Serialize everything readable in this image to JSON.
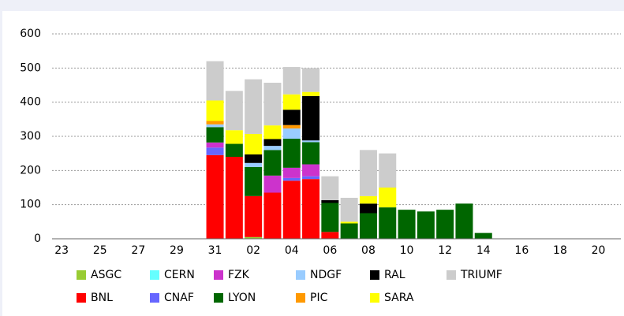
{
  "chart_data": {
    "type": "stacked-bar",
    "categories": [
      "23",
      null,
      "25",
      null,
      "27",
      null,
      "29",
      null,
      "31",
      null,
      "02",
      null,
      "04",
      null,
      "06",
      null,
      "08",
      null,
      "10",
      null,
      "12",
      null,
      "14",
      null,
      "16",
      null,
      "18",
      null,
      "20"
    ],
    "ylim": [
      0,
      600
    ],
    "yticks": [
      0,
      100,
      200,
      300,
      400,
      500,
      600
    ],
    "grid": true,
    "series": [
      {
        "name": "ASGC",
        "color": "#99cc33",
        "values": [
          0,
          0,
          0,
          0,
          0,
          0,
          0,
          0,
          0,
          0,
          5,
          0,
          0,
          0,
          0,
          0,
          0,
          0,
          0,
          0,
          0,
          0,
          0,
          0,
          0,
          0,
          0,
          0,
          0
        ]
      },
      {
        "name": "BNL",
        "color": "#ff0000",
        "values": [
          0,
          0,
          0,
          0,
          0,
          0,
          0,
          0,
          245,
          240,
          120,
          135,
          170,
          175,
          20,
          0,
          0,
          0,
          0,
          0,
          0,
          0,
          0,
          0,
          0,
          0,
          0,
          0,
          0
        ]
      },
      {
        "name": "CERN",
        "color": "#66ffff",
        "values": [
          0,
          0,
          0,
          0,
          0,
          0,
          0,
          0,
          0,
          0,
          0,
          0,
          0,
          0,
          0,
          0,
          0,
          0,
          0,
          0,
          0,
          0,
          0,
          0,
          0,
          0,
          0,
          0,
          0
        ]
      },
      {
        "name": "CNAF",
        "color": "#6666ff",
        "values": [
          0,
          0,
          0,
          0,
          0,
          0,
          0,
          0,
          22,
          0,
          0,
          0,
          8,
          8,
          0,
          0,
          0,
          0,
          0,
          0,
          0,
          0,
          0,
          0,
          0,
          0,
          0,
          0,
          0
        ]
      },
      {
        "name": "FZK",
        "color": "#cc33cc",
        "values": [
          0,
          0,
          0,
          0,
          0,
          0,
          0,
          0,
          15,
          0,
          0,
          50,
          30,
          35,
          0,
          0,
          0,
          0,
          0,
          0,
          0,
          0,
          0,
          0,
          0,
          0,
          0,
          0,
          0
        ]
      },
      {
        "name": "LYON",
        "color": "#006600",
        "values": [
          0,
          0,
          0,
          0,
          0,
          0,
          0,
          0,
          45,
          38,
          85,
          75,
          85,
          65,
          85,
          45,
          75,
          92,
          85,
          80,
          85,
          103,
          17,
          0,
          0,
          0,
          0,
          0,
          0
        ]
      },
      {
        "name": "NDGF",
        "color": "#99ccff",
        "values": [
          0,
          0,
          0,
          0,
          0,
          0,
          0,
          0,
          8,
          0,
          12,
          12,
          30,
          5,
          0,
          0,
          0,
          0,
          0,
          0,
          0,
          0,
          0,
          0,
          0,
          0,
          0,
          0,
          0
        ]
      },
      {
        "name": "PIC",
        "color": "#ff9900",
        "values": [
          0,
          0,
          0,
          0,
          0,
          0,
          0,
          0,
          10,
          0,
          0,
          0,
          10,
          0,
          0,
          0,
          0,
          0,
          0,
          0,
          0,
          0,
          0,
          0,
          0,
          0,
          0,
          0,
          0
        ]
      },
      {
        "name": "RAL",
        "color": "#000000",
        "values": [
          0,
          0,
          0,
          0,
          0,
          0,
          0,
          0,
          0,
          0,
          25,
          20,
          45,
          130,
          8,
          0,
          28,
          0,
          0,
          0,
          0,
          0,
          0,
          0,
          0,
          0,
          0,
          0,
          0
        ]
      },
      {
        "name": "SARA",
        "color": "#ffff00",
        "values": [
          0,
          0,
          0,
          0,
          0,
          0,
          0,
          0,
          60,
          40,
          60,
          40,
          45,
          12,
          0,
          5,
          22,
          58,
          0,
          0,
          0,
          0,
          0,
          0,
          0,
          0,
          0,
          0,
          0
        ]
      },
      {
        "name": "TRIUMF",
        "color": "#cccccc",
        "values": [
          0,
          0,
          0,
          0,
          0,
          0,
          0,
          0,
          115,
          115,
          160,
          125,
          80,
          70,
          70,
          70,
          135,
          100,
          0,
          0,
          0,
          0,
          0,
          0,
          0,
          0,
          0,
          0,
          0
        ]
      }
    ]
  }
}
